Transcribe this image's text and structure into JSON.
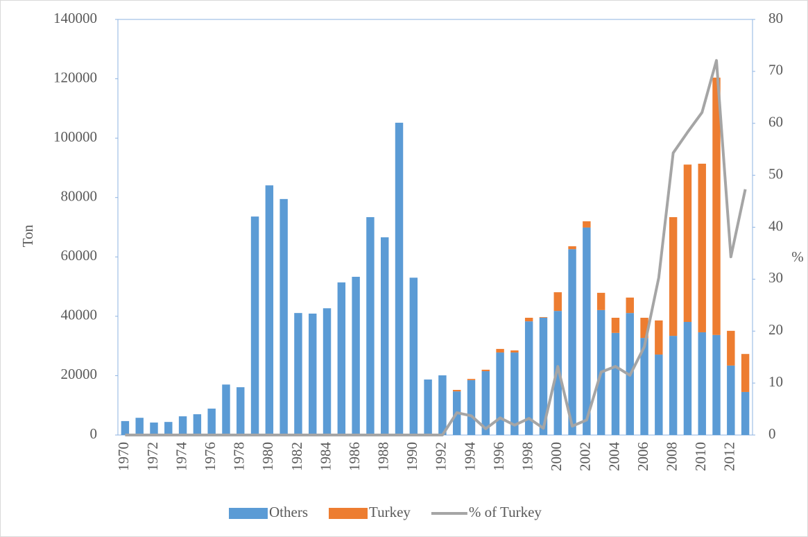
{
  "chart_data": {
    "type": "bar",
    "categories": [
      "1970",
      null,
      "1972",
      null,
      "1974",
      null,
      "1976",
      null,
      "1978",
      null,
      "1980",
      null,
      "1982",
      null,
      "1984",
      null,
      "1986",
      null,
      "1988",
      null,
      "1990",
      null,
      "1992",
      null,
      "1994",
      null,
      "1996",
      null,
      "1998",
      null,
      "2000",
      null,
      "2002",
      null,
      "2004",
      null,
      "2006",
      null,
      "2008",
      null,
      "2010",
      null,
      "2012",
      null
    ],
    "series": [
      {
        "name": "Others",
        "color": "#5b9bd5",
        "values": [
          4700,
          5800,
          4200,
          4400,
          6300,
          7000,
          8900,
          17000,
          16100,
          73600,
          84100,
          79500,
          41100,
          40900,
          42700,
          51400,
          53300,
          73400,
          66600,
          105200,
          53000,
          18700,
          20100,
          14700,
          18500,
          21500,
          27800,
          27800,
          38300,
          39500,
          41800,
          62600,
          69900,
          42100,
          34400,
          41100,
          32700,
          27100,
          33400,
          38100,
          34600,
          33700,
          23400,
          14500
        ]
      },
      {
        "name": "Turkey",
        "color": "#ed7d31",
        "values": [
          0,
          0,
          0,
          0,
          0,
          0,
          0,
          0,
          0,
          0,
          0,
          0,
          0,
          0,
          0,
          0,
          0,
          0,
          0,
          0,
          0,
          0,
          0,
          500,
          400,
          500,
          1200,
          700,
          1200,
          200,
          6300,
          1000,
          2100,
          5800,
          5100,
          5200,
          6800,
          11500,
          40000,
          53000,
          56800,
          86700,
          11700,
          12800
        ]
      },
      {
        "name": "% of Turkey",
        "color": "#a5a5a5",
        "axis": "y2",
        "type": "line",
        "values": [
          0,
          0,
          0,
          0,
          0,
          0,
          0,
          0,
          0,
          0,
          0,
          0,
          0,
          0,
          0,
          0,
          0,
          0,
          0,
          0,
          0,
          0,
          0,
          4.3,
          3.7,
          1.2,
          3.3,
          1.9,
          3.2,
          1.3,
          13.2,
          1.7,
          2.9,
          12.1,
          13.2,
          11.5,
          17,
          30.3,
          54.3,
          58.3,
          62.1,
          72.1,
          34.3,
          47.3
        ]
      }
    ],
    "stacked": true,
    "y_label": "Ton",
    "y2_label": "%",
    "ylim": [
      0,
      140000
    ],
    "yticks": [
      0,
      20000,
      40000,
      60000,
      80000,
      100000,
      120000,
      140000
    ],
    "y2lim": [
      0,
      80
    ],
    "y2ticks": [
      0,
      10,
      20,
      30,
      40,
      50,
      60,
      70,
      80
    ],
    "legend": "bottom"
  }
}
